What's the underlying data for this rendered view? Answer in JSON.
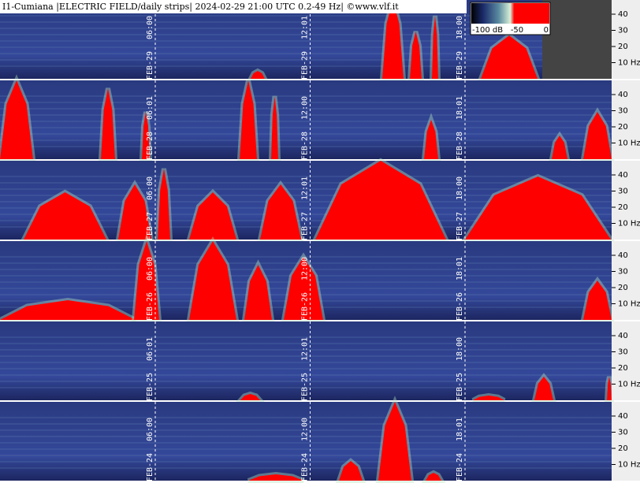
{
  "header": {
    "title": "I1-Cumiana |ELECTRIC FIELD/daily strips| 2024-02-29 21:00 UTC 0.2-49 Hz| ©www.vlf.it"
  },
  "colorbar": {
    "labels": [
      "-100 dB",
      "-50",
      "0"
    ]
  },
  "strips": [
    {
      "date": "FEB-29",
      "times": [
        "06:00",
        "12:01",
        "18:00"
      ],
      "ticks": [
        "40",
        "30",
        "20",
        "10 Hz"
      ]
    },
    {
      "date": "FEB-28",
      "times": [
        "06:01",
        "12:00",
        "18:01"
      ],
      "ticks": [
        "40",
        "30",
        "20",
        "10 Hz"
      ]
    },
    {
      "date": "FEB-27",
      "times": [
        "06:00",
        "12:01",
        "18:00"
      ],
      "ticks": [
        "40",
        "30",
        "20",
        "10 Hz"
      ]
    },
    {
      "date": "FEB-26",
      "times": [
        "06:00",
        "12:00",
        "18:01"
      ],
      "ticks": [
        "40",
        "30",
        "20",
        "10 Hz"
      ]
    },
    {
      "date": "FEB-25",
      "times": [
        "06:01",
        "12:01",
        "18:00"
      ],
      "ticks": [
        "40",
        "30",
        "20",
        "10 Hz"
      ]
    },
    {
      "date": "FEB-24",
      "times": [
        "06:00",
        "12:00",
        "18:01"
      ],
      "ticks": [
        "40",
        "30",
        "20",
        "10 Hz"
      ]
    }
  ]
}
